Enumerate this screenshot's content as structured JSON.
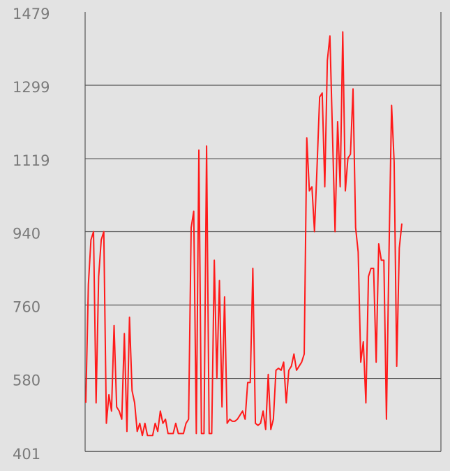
{
  "chart_data": {
    "type": "line",
    "title": "",
    "xlabel": "",
    "ylabel": "",
    "ylim": [
      401,
      1479
    ],
    "yticks": [
      401,
      580,
      760,
      940,
      1119,
      1299,
      1479
    ],
    "grid": true,
    "legend": "none",
    "colors": {
      "background": "#e3e3e3",
      "line": "#ff1a1a",
      "grid": "#555555",
      "axis": "#555555",
      "tick_text": "#7a7a7a"
    },
    "series": [
      {
        "values": [
          520,
          810,
          920,
          940,
          520,
          830,
          920,
          940,
          470,
          540,
          500,
          710,
          510,
          500,
          480,
          690,
          450,
          730,
          550,
          520,
          450,
          470,
          440,
          470,
          440,
          440,
          440,
          470,
          450,
          500,
          470,
          480,
          445,
          445,
          445,
          470,
          445,
          445,
          445,
          470,
          480,
          950,
          990,
          445,
          1140,
          445,
          445,
          1150,
          445,
          445,
          870,
          580,
          820,
          510,
          780,
          470,
          480,
          475,
          475,
          480,
          490,
          500,
          480,
          570,
          570,
          850,
          470,
          465,
          470,
          500,
          455,
          590,
          455,
          480,
          600,
          605,
          600,
          620,
          520,
          600,
          610,
          640,
          600,
          610,
          620,
          640,
          1170,
          1040,
          1050,
          940,
          1100,
          1270,
          1280,
          1050,
          1360,
          1420,
          1180,
          940,
          1210,
          1050,
          1430,
          1040,
          1120,
          1130,
          1290,
          950,
          890,
          620,
          670,
          520,
          830,
          850,
          850,
          620,
          910,
          870,
          870,
          480,
          890,
          1250,
          1110,
          610,
          900,
          960
        ]
      }
    ]
  }
}
